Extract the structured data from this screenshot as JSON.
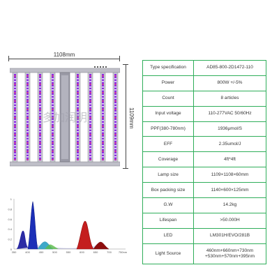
{
  "dimensions": {
    "width_label": "1108mm",
    "height_label": "1109mm"
  },
  "colors": {
    "table_border": "#2fae5a",
    "led_purple": "#8a2be2",
    "led_pink": "#e0428a",
    "bar_metal": "#c9c9d2",
    "spectrum_blue": "#1a1a9c",
    "spectrum_red": "#c41e1e"
  },
  "watermark": "多加润明",
  "spectrum": {
    "y_ticks": [
      "1",
      "0.8",
      "0.6",
      "0.4",
      "0.2",
      "0"
    ],
    "x_ticks": [
      "350",
      "400",
      "450",
      "500",
      "550",
      "600",
      "650",
      "700",
      "750nm"
    ]
  },
  "specs": [
    {
      "key": "Type specification",
      "value": "AD85-800-2D1472-110"
    },
    {
      "key": "Power",
      "value": "800W +/-5%"
    },
    {
      "key": "Count",
      "value": "8 articles"
    },
    {
      "key": "Input voltage",
      "value": "110-277VAC 50/60Hz"
    },
    {
      "key": "PPF(380-780nm)",
      "value": "1936μmol/S"
    },
    {
      "key": "EFF",
      "value": "2.35umol/J"
    },
    {
      "key": "Coverage",
      "value": "4ft*4ft"
    },
    {
      "key": "Lamp size",
      "value": "1109×1108×60mm"
    },
    {
      "key": "Box packing size",
      "value": "1140×600×125mm"
    },
    {
      "key": "G.W",
      "value": "14.2kg"
    },
    {
      "key": "Lifespan",
      "value": ">50.000H"
    },
    {
      "key": "LED",
      "value": "LM301H/EVO/281B"
    },
    {
      "key": "Light Source",
      "value": "460nm+660nm+730nm",
      "value2": "+530nm+570nm+395nm"
    }
  ]
}
